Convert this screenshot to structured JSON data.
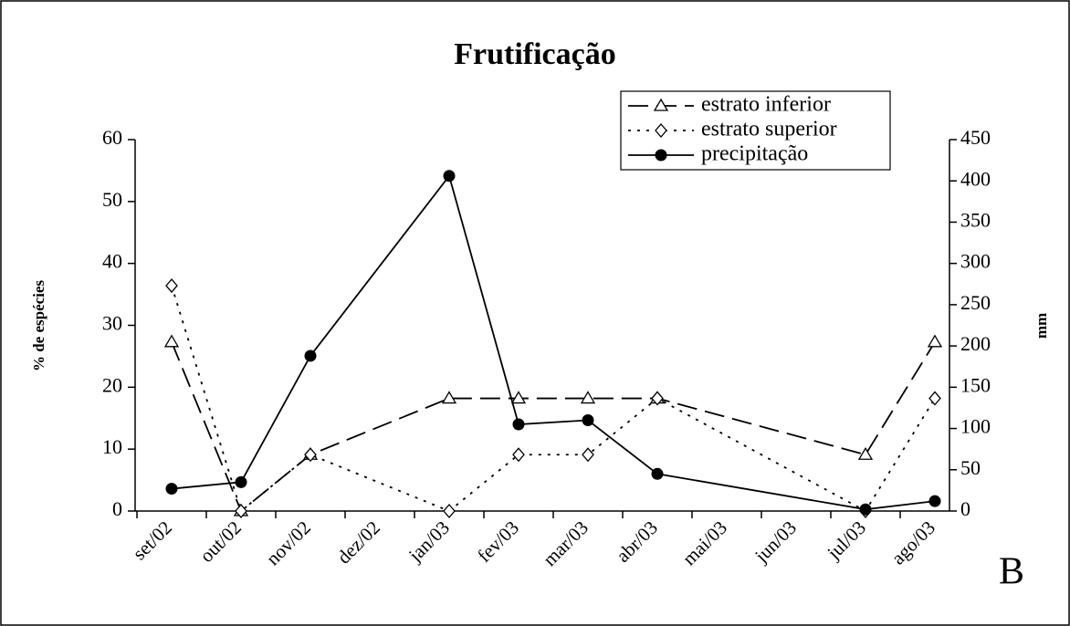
{
  "chart_data": {
    "type": "line",
    "title": "Frutificação",
    "categories": [
      "set/02",
      "out/02",
      "nov/02",
      "dez/02",
      "jan/03",
      "fev/03",
      "mar/03",
      "abr/03",
      "mai/03",
      "jun/03",
      "jul/03",
      "ago/03"
    ],
    "series": [
      {
        "name": "estrato inferior",
        "color": "#000000",
        "values": [
          27.3,
          0,
          9.1,
          null,
          18.2,
          18.2,
          18.2,
          18.2,
          null,
          null,
          9.1,
          27.3
        ]
      },
      {
        "name": "estrato superior",
        "color": "#000000",
        "values": [
          36.4,
          0,
          9.1,
          null,
          0,
          9.1,
          9.1,
          18.2,
          null,
          null,
          0,
          18.2
        ]
      },
      {
        "name": "precipitação",
        "color": "#000000",
        "axis": "y2",
        "values": [
          27,
          35,
          188,
          null,
          406,
          105,
          110,
          45,
          null,
          null,
          2,
          12
        ]
      }
    ],
    "ylabel": "% de espécies",
    "y2label": "mm",
    "ylim": [
      0,
      60
    ],
    "yticks": [
      0,
      10,
      20,
      30,
      40,
      50,
      60
    ],
    "y2lim": [
      0,
      450
    ],
    "y2ticks": [
      0,
      50,
      100,
      150,
      200,
      250,
      300,
      350,
      400,
      450
    ],
    "annotation": "B",
    "legend": "top-right"
  }
}
